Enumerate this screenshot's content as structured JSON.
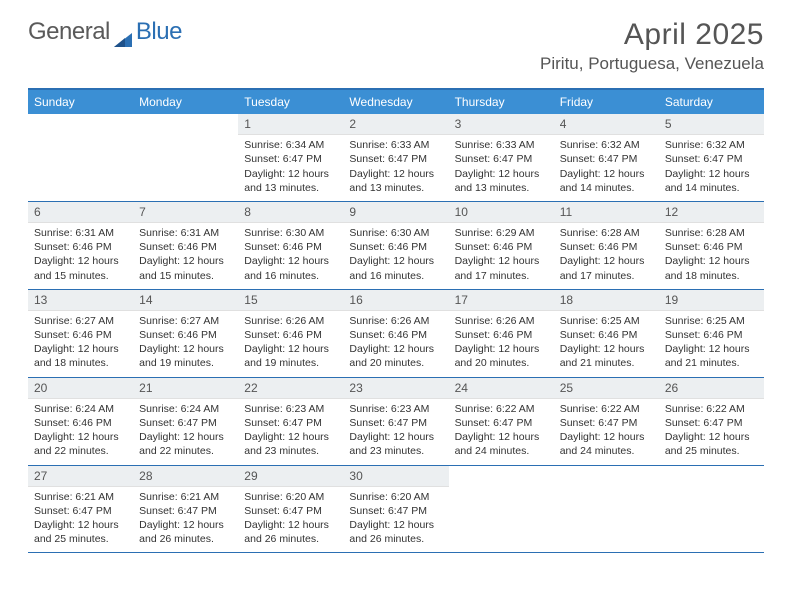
{
  "logo": {
    "left": "General",
    "right": "Blue"
  },
  "title": "April 2025",
  "location": "Piritu, Portuguesa, Venezuela",
  "colors": {
    "header_bar": "#3b8fd4",
    "rule": "#2b6fb3",
    "daynum_bg": "#eceff1",
    "text": "#333333",
    "title_text": "#555555"
  },
  "dow": [
    "Sunday",
    "Monday",
    "Tuesday",
    "Wednesday",
    "Thursday",
    "Friday",
    "Saturday"
  ],
  "weeks": [
    [
      {
        "n": "",
        "sr": "",
        "ss": "",
        "dl": ""
      },
      {
        "n": "",
        "sr": "",
        "ss": "",
        "dl": ""
      },
      {
        "n": "1",
        "sr": "6:34 AM",
        "ss": "6:47 PM",
        "dl": "12 hours and 13 minutes."
      },
      {
        "n": "2",
        "sr": "6:33 AM",
        "ss": "6:47 PM",
        "dl": "12 hours and 13 minutes."
      },
      {
        "n": "3",
        "sr": "6:33 AM",
        "ss": "6:47 PM",
        "dl": "12 hours and 13 minutes."
      },
      {
        "n": "4",
        "sr": "6:32 AM",
        "ss": "6:47 PM",
        "dl": "12 hours and 14 minutes."
      },
      {
        "n": "5",
        "sr": "6:32 AM",
        "ss": "6:47 PM",
        "dl": "12 hours and 14 minutes."
      }
    ],
    [
      {
        "n": "6",
        "sr": "6:31 AM",
        "ss": "6:46 PM",
        "dl": "12 hours and 15 minutes."
      },
      {
        "n": "7",
        "sr": "6:31 AM",
        "ss": "6:46 PM",
        "dl": "12 hours and 15 minutes."
      },
      {
        "n": "8",
        "sr": "6:30 AM",
        "ss": "6:46 PM",
        "dl": "12 hours and 16 minutes."
      },
      {
        "n": "9",
        "sr": "6:30 AM",
        "ss": "6:46 PM",
        "dl": "12 hours and 16 minutes."
      },
      {
        "n": "10",
        "sr": "6:29 AM",
        "ss": "6:46 PM",
        "dl": "12 hours and 17 minutes."
      },
      {
        "n": "11",
        "sr": "6:28 AM",
        "ss": "6:46 PM",
        "dl": "12 hours and 17 minutes."
      },
      {
        "n": "12",
        "sr": "6:28 AM",
        "ss": "6:46 PM",
        "dl": "12 hours and 18 minutes."
      }
    ],
    [
      {
        "n": "13",
        "sr": "6:27 AM",
        "ss": "6:46 PM",
        "dl": "12 hours and 18 minutes."
      },
      {
        "n": "14",
        "sr": "6:27 AM",
        "ss": "6:46 PM",
        "dl": "12 hours and 19 minutes."
      },
      {
        "n": "15",
        "sr": "6:26 AM",
        "ss": "6:46 PM",
        "dl": "12 hours and 19 minutes."
      },
      {
        "n": "16",
        "sr": "6:26 AM",
        "ss": "6:46 PM",
        "dl": "12 hours and 20 minutes."
      },
      {
        "n": "17",
        "sr": "6:26 AM",
        "ss": "6:46 PM",
        "dl": "12 hours and 20 minutes."
      },
      {
        "n": "18",
        "sr": "6:25 AM",
        "ss": "6:46 PM",
        "dl": "12 hours and 21 minutes."
      },
      {
        "n": "19",
        "sr": "6:25 AM",
        "ss": "6:46 PM",
        "dl": "12 hours and 21 minutes."
      }
    ],
    [
      {
        "n": "20",
        "sr": "6:24 AM",
        "ss": "6:46 PM",
        "dl": "12 hours and 22 minutes."
      },
      {
        "n": "21",
        "sr": "6:24 AM",
        "ss": "6:47 PM",
        "dl": "12 hours and 22 minutes."
      },
      {
        "n": "22",
        "sr": "6:23 AM",
        "ss": "6:47 PM",
        "dl": "12 hours and 23 minutes."
      },
      {
        "n": "23",
        "sr": "6:23 AM",
        "ss": "6:47 PM",
        "dl": "12 hours and 23 minutes."
      },
      {
        "n": "24",
        "sr": "6:22 AM",
        "ss": "6:47 PM",
        "dl": "12 hours and 24 minutes."
      },
      {
        "n": "25",
        "sr": "6:22 AM",
        "ss": "6:47 PM",
        "dl": "12 hours and 24 minutes."
      },
      {
        "n": "26",
        "sr": "6:22 AM",
        "ss": "6:47 PM",
        "dl": "12 hours and 25 minutes."
      }
    ],
    [
      {
        "n": "27",
        "sr": "6:21 AM",
        "ss": "6:47 PM",
        "dl": "12 hours and 25 minutes."
      },
      {
        "n": "28",
        "sr": "6:21 AM",
        "ss": "6:47 PM",
        "dl": "12 hours and 26 minutes."
      },
      {
        "n": "29",
        "sr": "6:20 AM",
        "ss": "6:47 PM",
        "dl": "12 hours and 26 minutes."
      },
      {
        "n": "30",
        "sr": "6:20 AM",
        "ss": "6:47 PM",
        "dl": "12 hours and 26 minutes."
      },
      {
        "n": "",
        "sr": "",
        "ss": "",
        "dl": ""
      },
      {
        "n": "",
        "sr": "",
        "ss": "",
        "dl": ""
      },
      {
        "n": "",
        "sr": "",
        "ss": "",
        "dl": ""
      }
    ]
  ],
  "labels": {
    "sunrise": "Sunrise: ",
    "sunset": "Sunset: ",
    "daylight": "Daylight: "
  }
}
